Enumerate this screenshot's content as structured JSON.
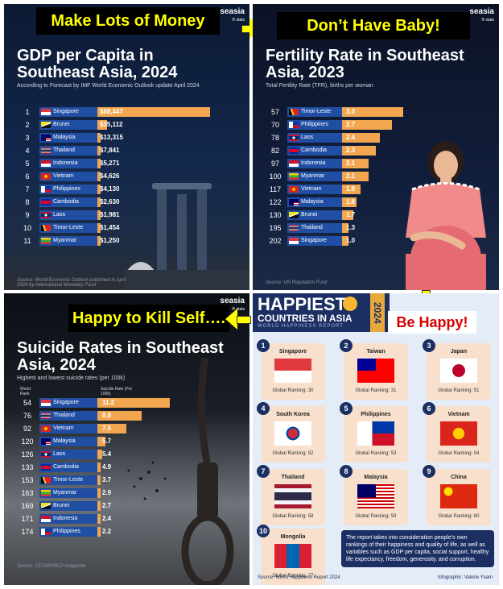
{
  "captions": {
    "top_left": "Make Lots of Money",
    "top_right": "Don’t Have Baby!",
    "bottom_left": "Happy to Kill Self….",
    "bottom_right": "Be Happy!"
  },
  "brand": {
    "name": "seasia",
    "tag": "® stats"
  },
  "chart_data": [
    {
      "type": "bar",
      "title": "GDP per Capita in Southeast Asia, 2024",
      "subtitle": "According to Forecast by IMF World Economic Outlook update April 2024",
      "source": "Source: World Economic Outlook published in April 2024 by International Monetary Fund",
      "ranks": [
        "1",
        "2",
        "3",
        "4",
        "5",
        "6",
        "7",
        "8",
        "9",
        "10",
        "11"
      ],
      "categories": [
        "Singapore",
        "Brunei",
        "Malaysia",
        "Thailand",
        "Indonesia",
        "Vietnam",
        "Philippines",
        "Cambodia",
        "Laos",
        "Timor-Leste",
        "Myanmar"
      ],
      "labels": [
        "$88,447",
        "$35,112",
        "$13,315",
        "$7,841",
        "$5,271",
        "$4,626",
        "$4,130",
        "$2,630",
        "$1,981",
        "$1,454",
        "$1,250"
      ],
      "values": [
        88447,
        35112,
        13315,
        7841,
        5271,
        4626,
        4130,
        2630,
        1981,
        1454,
        1250
      ]
    },
    {
      "type": "bar",
      "title": "Fertility Rate in Southeast Asia, 2023",
      "subtitle": "Total Fertility Rate (TFR), births per woman",
      "source": "Source: UN Population Fund",
      "ranks": [
        "57",
        "70",
        "78",
        "82",
        "97",
        "100",
        "117",
        "122",
        "130",
        "195",
        "202"
      ],
      "categories": [
        "Timor-Leste",
        "Philippines",
        "Laos",
        "Cambodia",
        "Indonesia",
        "Myanmar",
        "Vietnam",
        "Malaysia",
        "Brunei",
        "Thailand",
        "Singapore"
      ],
      "labels": [
        "3.0",
        "2.7",
        "2.4",
        "2.3",
        "2.1",
        "2.1",
        "1.9",
        "1.8",
        "1.7",
        "1.3",
        "1.0"
      ],
      "values": [
        3.0,
        2.7,
        2.4,
        2.3,
        2.1,
        2.1,
        1.9,
        1.8,
        1.7,
        1.3,
        1.0
      ]
    },
    {
      "type": "bar",
      "title": "Suicide Rates in Southeast Asia, 2024",
      "subtitle": "Highest and lowest suicide rates (per 100k)",
      "rank_header": "World Rank",
      "value_header": "Suicide Rate (Per 100k)",
      "source": "Source: CEOWORLD magazine",
      "ranks": [
        "54",
        "76",
        "92",
        "120",
        "126",
        "133",
        "153",
        "163",
        "169",
        "171",
        "174"
      ],
      "categories": [
        "Singapore",
        "Thailand",
        "Vietnam",
        "Malaysia",
        "Laos",
        "Cambodia",
        "Timor-Leste",
        "Myanmar",
        "Brunei",
        "Indonesia",
        "Philippines"
      ],
      "labels": [
        "11.2",
        "8.8",
        "7.5",
        "5.7",
        "5.4",
        "4.9",
        "3.7",
        "2.9",
        "2.7",
        "2.4",
        "2.2"
      ],
      "values": [
        11.2,
        8.8,
        7.5,
        5.7,
        5.4,
        4.9,
        3.7,
        2.9,
        2.7,
        2.4,
        2.2
      ]
    }
  ],
  "happiness": {
    "title_line1": "HAPPIEST",
    "title_line2": "COUNTRIES IN ASIA",
    "year": "2024",
    "report": "WORLD HAPPINESS REPORT",
    "countries": [
      {
        "num": "1",
        "name": "Singapore",
        "rank": "Global Ranking: 30"
      },
      {
        "num": "2",
        "name": "Taiwan",
        "rank": "Global Ranking: 31"
      },
      {
        "num": "3",
        "name": "Japan",
        "rank": "Global Ranking: 51"
      },
      {
        "num": "4",
        "name": "South Korea",
        "rank": "Global Ranking: 52"
      },
      {
        "num": "5",
        "name": "Philippines",
        "rank": "Global Ranking: 53"
      },
      {
        "num": "6",
        "name": "Vietnam",
        "rank": "Global Ranking: 54"
      },
      {
        "num": "7",
        "name": "Thailand",
        "rank": "Global Ranking: 58"
      },
      {
        "num": "8",
        "name": "Malaysia",
        "rank": "Global Ranking: 59"
      },
      {
        "num": "9",
        "name": "China",
        "rank": "Global Ranking: 60"
      },
      {
        "num": "10",
        "name": "Mongolia",
        "rank": "Global Ranking: 77"
      }
    ],
    "note": "The report takes into consideration people’s own rankings of their happiness and quality of life, as well as variables such as GDP per capita, social support, healthy life expectancy, freedom, generosity, and corruption.",
    "source": "Source: World Happiness Report 2024",
    "credit": "Infographic: Valerie Yuam"
  },
  "colors": {
    "bar": "#f2a650",
    "country_box": "#1f4ea3",
    "banner_text": "#ffff00"
  }
}
